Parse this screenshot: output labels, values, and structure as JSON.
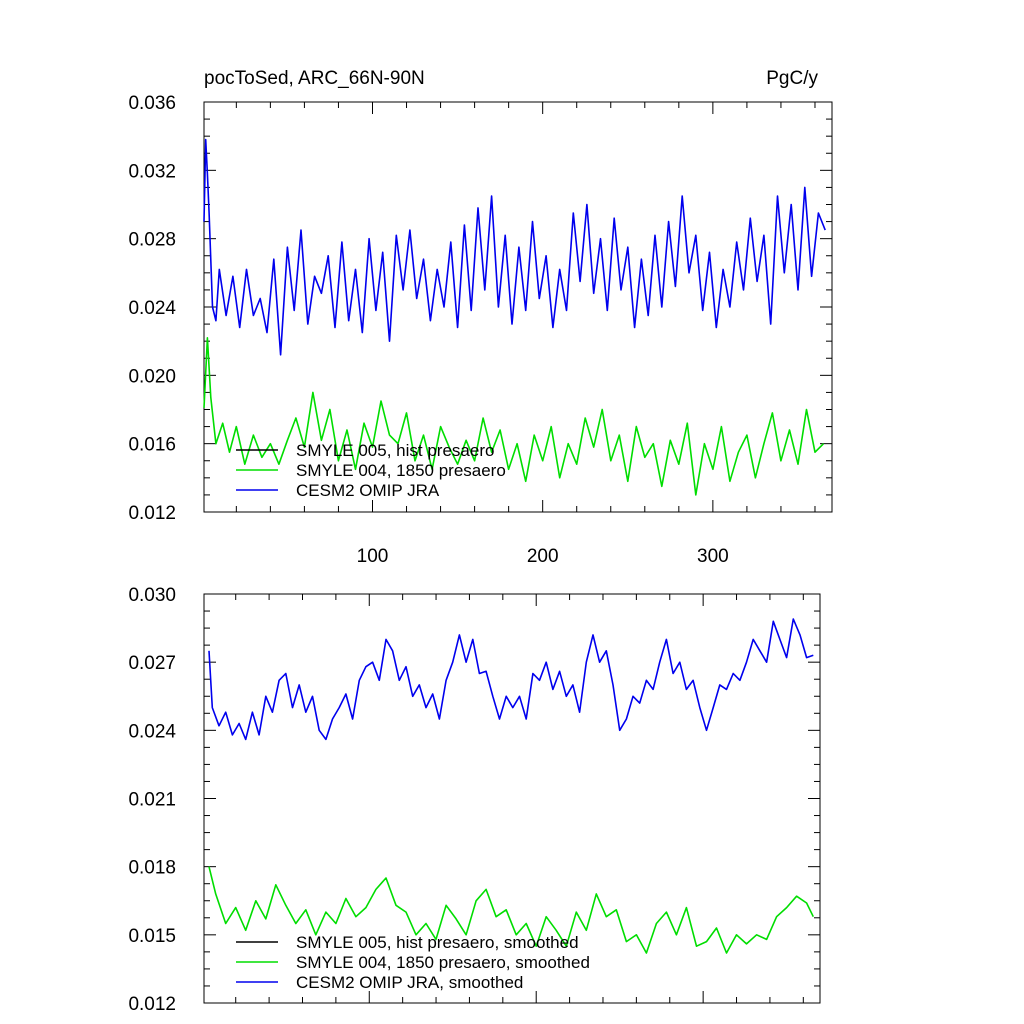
{
  "title_left": "pocToSed, ARC_66N-90N",
  "title_right": "PgC/y",
  "colors": {
    "smyle005": "#000000",
    "smyle004": "#00dd00",
    "cesm2": "#0000ee"
  },
  "chart_data": [
    {
      "type": "line",
      "title": "pocToSed, ARC_66N-90N",
      "units": "PgC/y",
      "xlim": [
        1,
        370
      ],
      "ylim": [
        0.012,
        0.036
      ],
      "x_ticks": [
        100,
        200,
        300
      ],
      "x_tick_labels": [
        "100",
        "200",
        "300"
      ],
      "y_ticks": [
        0.012,
        0.016,
        0.02,
        0.024,
        0.028,
        0.032,
        0.036
      ],
      "y_tick_labels": [
        "0.012",
        "0.016",
        "0.020",
        "0.024",
        "0.028",
        "0.032",
        "0.036"
      ],
      "legend_position": "bottom-left",
      "series": [
        {
          "name": "SMYLE 005, hist presaero",
          "color": "#000000",
          "x": [],
          "y": []
        },
        {
          "name": "SMYLE 004, 1850 presaero",
          "color": "#00dd00",
          "x": [
            1,
            3,
            5,
            8,
            12,
            16,
            20,
            25,
            30,
            35,
            40,
            45,
            50,
            55,
            60,
            65,
            70,
            75,
            80,
            85,
            90,
            95,
            100,
            105,
            110,
            115,
            120,
            125,
            130,
            135,
            140,
            145,
            150,
            155,
            160,
            165,
            170,
            175,
            180,
            185,
            190,
            195,
            200,
            205,
            210,
            215,
            220,
            225,
            230,
            235,
            240,
            245,
            250,
            255,
            260,
            265,
            270,
            275,
            280,
            285,
            290,
            295,
            300,
            305,
            310,
            315,
            320,
            325,
            330,
            335,
            340,
            345,
            350,
            355,
            360,
            365
          ],
          "y": [
            0.0181,
            0.0222,
            0.0187,
            0.016,
            0.0172,
            0.0155,
            0.017,
            0.0148,
            0.0165,
            0.0152,
            0.016,
            0.0148,
            0.0162,
            0.0175,
            0.0158,
            0.019,
            0.0162,
            0.018,
            0.015,
            0.0168,
            0.0145,
            0.0172,
            0.0158,
            0.0185,
            0.0165,
            0.016,
            0.0178,
            0.015,
            0.0165,
            0.0145,
            0.017,
            0.0158,
            0.0148,
            0.0162,
            0.015,
            0.0175,
            0.0155,
            0.0168,
            0.0145,
            0.016,
            0.0138,
            0.0165,
            0.015,
            0.017,
            0.014,
            0.016,
            0.0148,
            0.0175,
            0.0158,
            0.018,
            0.015,
            0.0165,
            0.0138,
            0.017,
            0.0152,
            0.016,
            0.0135,
            0.0162,
            0.0148,
            0.0172,
            0.013,
            0.016,
            0.0145,
            0.017,
            0.0138,
            0.0155,
            0.0165,
            0.014,
            0.016,
            0.0178,
            0.015,
            0.0168,
            0.0148,
            0.018,
            0.0155,
            0.016
          ]
        },
        {
          "name": "CESM2 OMIP JRA",
          "color": "#0000ee",
          "x": [
            1,
            2,
            3,
            4,
            6,
            8,
            10,
            14,
            18,
            22,
            26,
            30,
            34,
            38,
            42,
            46,
            50,
            54,
            58,
            62,
            66,
            70,
            74,
            78,
            82,
            86,
            90,
            94,
            98,
            102,
            106,
            110,
            114,
            118,
            122,
            126,
            130,
            134,
            138,
            142,
            146,
            150,
            154,
            158,
            162,
            166,
            170,
            174,
            178,
            182,
            186,
            190,
            194,
            198,
            202,
            206,
            210,
            214,
            218,
            222,
            226,
            230,
            234,
            238,
            242,
            246,
            250,
            254,
            258,
            262,
            266,
            270,
            274,
            278,
            282,
            286,
            290,
            294,
            298,
            302,
            306,
            310,
            314,
            318,
            322,
            326,
            330,
            334,
            338,
            342,
            346,
            350,
            354,
            358,
            362,
            366
          ],
          "y": [
            0.029,
            0.0338,
            0.0318,
            0.0295,
            0.024,
            0.0232,
            0.0262,
            0.0235,
            0.0258,
            0.0228,
            0.0262,
            0.0235,
            0.0245,
            0.0225,
            0.0268,
            0.0212,
            0.0275,
            0.0238,
            0.0285,
            0.023,
            0.0258,
            0.0248,
            0.027,
            0.0228,
            0.0278,
            0.0232,
            0.0262,
            0.0225,
            0.028,
            0.0238,
            0.0272,
            0.022,
            0.0282,
            0.025,
            0.0285,
            0.0245,
            0.0268,
            0.0232,
            0.0262,
            0.024,
            0.0278,
            0.0228,
            0.0288,
            0.0238,
            0.0298,
            0.025,
            0.0305,
            0.024,
            0.0282,
            0.023,
            0.0275,
            0.0238,
            0.029,
            0.0245,
            0.027,
            0.0228,
            0.0262,
            0.0238,
            0.0295,
            0.0255,
            0.03,
            0.0248,
            0.028,
            0.0238,
            0.0292,
            0.025,
            0.0275,
            0.0228,
            0.0268,
            0.0235,
            0.0282,
            0.024,
            0.029,
            0.0252,
            0.0305,
            0.026,
            0.0282,
            0.0238,
            0.0272,
            0.0228,
            0.0262,
            0.024,
            0.0278,
            0.025,
            0.0292,
            0.0255,
            0.0282,
            0.023,
            0.0305,
            0.026,
            0.03,
            0.025,
            0.031,
            0.0258,
            0.0295,
            0.0285
          ]
        }
      ]
    },
    {
      "type": "line",
      "xlim": [
        1,
        370
      ],
      "ylim": [
        0.012,
        0.03
      ],
      "x_ticks": [
        100,
        200,
        300
      ],
      "y_ticks": [
        0.012,
        0.015,
        0.018,
        0.021,
        0.024,
        0.027,
        0.03
      ],
      "y_tick_labels": [
        "0.012",
        "0.015",
        "0.018",
        "0.021",
        "0.024",
        "0.027",
        "0.030"
      ],
      "legend_position": "bottom-left",
      "series": [
        {
          "name": "SMYLE 005, hist presaero, smoothed",
          "color": "#000000",
          "x": [],
          "y": []
        },
        {
          "name": "SMYLE 004, 1850 presaero, smoothed",
          "color": "#00dd00",
          "x": [
            4,
            8,
            14,
            20,
            26,
            32,
            38,
            44,
            50,
            56,
            62,
            68,
            74,
            80,
            86,
            92,
            98,
            104,
            110,
            116,
            122,
            128,
            134,
            140,
            146,
            152,
            158,
            164,
            170,
            176,
            182,
            188,
            194,
            200,
            206,
            212,
            218,
            224,
            230,
            236,
            242,
            248,
            254,
            260,
            266,
            272,
            278,
            284,
            290,
            296,
            302,
            308,
            314,
            320,
            326,
            332,
            338,
            344,
            350,
            356,
            362,
            366
          ],
          "y": [
            0.018,
            0.0168,
            0.0155,
            0.0162,
            0.0152,
            0.0165,
            0.0157,
            0.0172,
            0.0163,
            0.0155,
            0.0161,
            0.015,
            0.016,
            0.0155,
            0.0166,
            0.0158,
            0.0162,
            0.017,
            0.0175,
            0.0163,
            0.016,
            0.015,
            0.0155,
            0.0148,
            0.0163,
            0.0157,
            0.015,
            0.0165,
            0.017,
            0.0158,
            0.0161,
            0.015,
            0.0155,
            0.0145,
            0.0158,
            0.0152,
            0.0145,
            0.016,
            0.0152,
            0.0168,
            0.0158,
            0.0161,
            0.0147,
            0.015,
            0.0142,
            0.0155,
            0.016,
            0.015,
            0.0162,
            0.0145,
            0.0147,
            0.0153,
            0.0142,
            0.015,
            0.0146,
            0.015,
            0.0148,
            0.0158,
            0.0162,
            0.0167,
            0.0164,
            0.0158
          ]
        },
        {
          "name": "CESM2 OMIP JRA, smoothed",
          "color": "#0000ee",
          "x": [
            4,
            6,
            10,
            14,
            18,
            22,
            26,
            30,
            34,
            38,
            42,
            46,
            50,
            54,
            58,
            62,
            66,
            70,
            74,
            78,
            82,
            86,
            90,
            94,
            98,
            102,
            106,
            110,
            114,
            118,
            122,
            126,
            130,
            134,
            138,
            142,
            146,
            150,
            154,
            158,
            162,
            166,
            170,
            174,
            178,
            182,
            186,
            190,
            194,
            198,
            202,
            206,
            210,
            214,
            218,
            222,
            226,
            230,
            234,
            238,
            242,
            246,
            250,
            254,
            258,
            262,
            266,
            270,
            274,
            278,
            282,
            286,
            290,
            294,
            298,
            302,
            306,
            310,
            314,
            318,
            322,
            326,
            330,
            334,
            338,
            342,
            346,
            350,
            354,
            358,
            362,
            366
          ],
          "y": [
            0.0275,
            0.025,
            0.0242,
            0.0248,
            0.0238,
            0.0243,
            0.0236,
            0.0248,
            0.0238,
            0.0255,
            0.0248,
            0.0262,
            0.0265,
            0.025,
            0.026,
            0.0248,
            0.0255,
            0.024,
            0.0236,
            0.0245,
            0.025,
            0.0256,
            0.0245,
            0.0262,
            0.0268,
            0.027,
            0.0262,
            0.028,
            0.0275,
            0.0262,
            0.0268,
            0.0255,
            0.026,
            0.025,
            0.0256,
            0.0245,
            0.0262,
            0.027,
            0.0282,
            0.027,
            0.028,
            0.0265,
            0.0266,
            0.0255,
            0.0245,
            0.0255,
            0.025,
            0.0255,
            0.0245,
            0.0265,
            0.0262,
            0.027,
            0.0258,
            0.0266,
            0.0255,
            0.026,
            0.0248,
            0.027,
            0.0282,
            0.027,
            0.0275,
            0.026,
            0.024,
            0.0245,
            0.0255,
            0.0252,
            0.0262,
            0.0258,
            0.027,
            0.028,
            0.0265,
            0.027,
            0.0258,
            0.0262,
            0.025,
            0.024,
            0.025,
            0.026,
            0.0258,
            0.0265,
            0.0262,
            0.027,
            0.028,
            0.0275,
            0.027,
            0.0288,
            0.028,
            0.0272,
            0.0289,
            0.0282,
            0.0272,
            0.0273
          ]
        }
      ]
    }
  ]
}
